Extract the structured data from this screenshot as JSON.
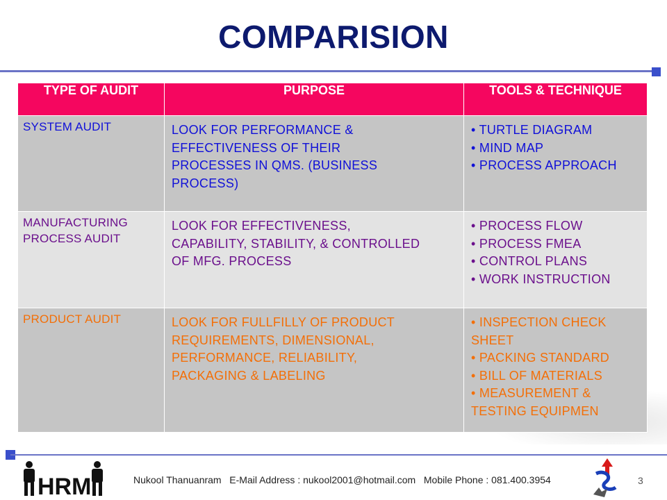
{
  "slide": {
    "title": "COMPARISION",
    "page_number": "3"
  },
  "table": {
    "headers": [
      "TYPE OF AUDIT",
      "PURPOSE",
      "TOOLS & TECHNIQUE"
    ],
    "rows": [
      {
        "type_lines": [
          "SYSTEM AUDIT"
        ],
        "purpose_lines": [
          "LOOK FOR PERFORMANCE &",
          "EFFECTIVENESS OF THEIR",
          "PROCESSES IN QMS. (BUSINESS",
          "PROCESS)"
        ],
        "tools_lines": [
          "• TURTLE DIAGRAM",
          "• MIND MAP",
          "• PROCESS APPROACH"
        ]
      },
      {
        "type_lines": [
          "MANUFACTURING",
          "PROCESS AUDIT"
        ],
        "purpose_lines": [
          "LOOK FOR EFFECTIVENESS,",
          "CAPABILITY, STABILITY, & CONTROLLED",
          "OF MFG. PROCESS"
        ],
        "tools_lines": [
          "• PROCESS FLOW",
          "• PROCESS FMEA",
          "• CONTROL PLANS",
          "• WORK INSTRUCTION"
        ]
      },
      {
        "type_lines": [
          "PRODUCT AUDIT"
        ],
        "purpose_lines": [
          "LOOK FOR FULLFILLY OF PRODUCT",
          "REQUIREMENTS, DIMENSIONAL,",
          "PERFORMANCE, RELIABILITY,",
          "PACKAGING & LABELING"
        ],
        "tools_lines": [
          "• INSPECTION CHECK",
          "SHEET",
          "• PACKING STANDARD",
          "• BILL OF MATERIALS",
          "• MEASUREMENT &",
          "TESTING EQUIPMEN"
        ]
      }
    ]
  },
  "footer": {
    "author": "Nukool Thanuanram",
    "email_label": "E-Mail Address :",
    "email": "nukool2001@hotmail.com",
    "phone_label": "Mobile Phone :",
    "phone": "081.400.3954",
    "logo_text": "HRM"
  },
  "colors": {
    "title": "#0d1a6e",
    "header_bg": "#f5065f",
    "row1_text": "#1010d8",
    "row2_text": "#6b108c",
    "row3_text": "#f36f08",
    "accent_rule": "#6a73c6"
  }
}
